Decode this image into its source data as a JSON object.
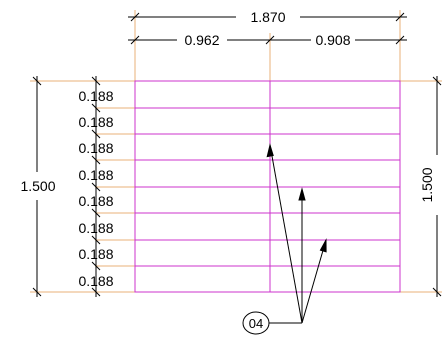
{
  "dimensions": {
    "overall_width": "1.870",
    "left_width": "0.962",
    "right_width": "0.908",
    "overall_height_left": "1.500",
    "overall_height_right": "1.500",
    "row_heights": [
      "0.188",
      "0.188",
      "0.188",
      "0.188",
      "0.188",
      "0.188",
      "0.188",
      "0.188"
    ]
  },
  "callout": {
    "tag": "04"
  },
  "colors": {
    "grid": "#cc33cc",
    "extension": "#e8b07a",
    "dimension": "#000000",
    "leader": "#000000"
  }
}
